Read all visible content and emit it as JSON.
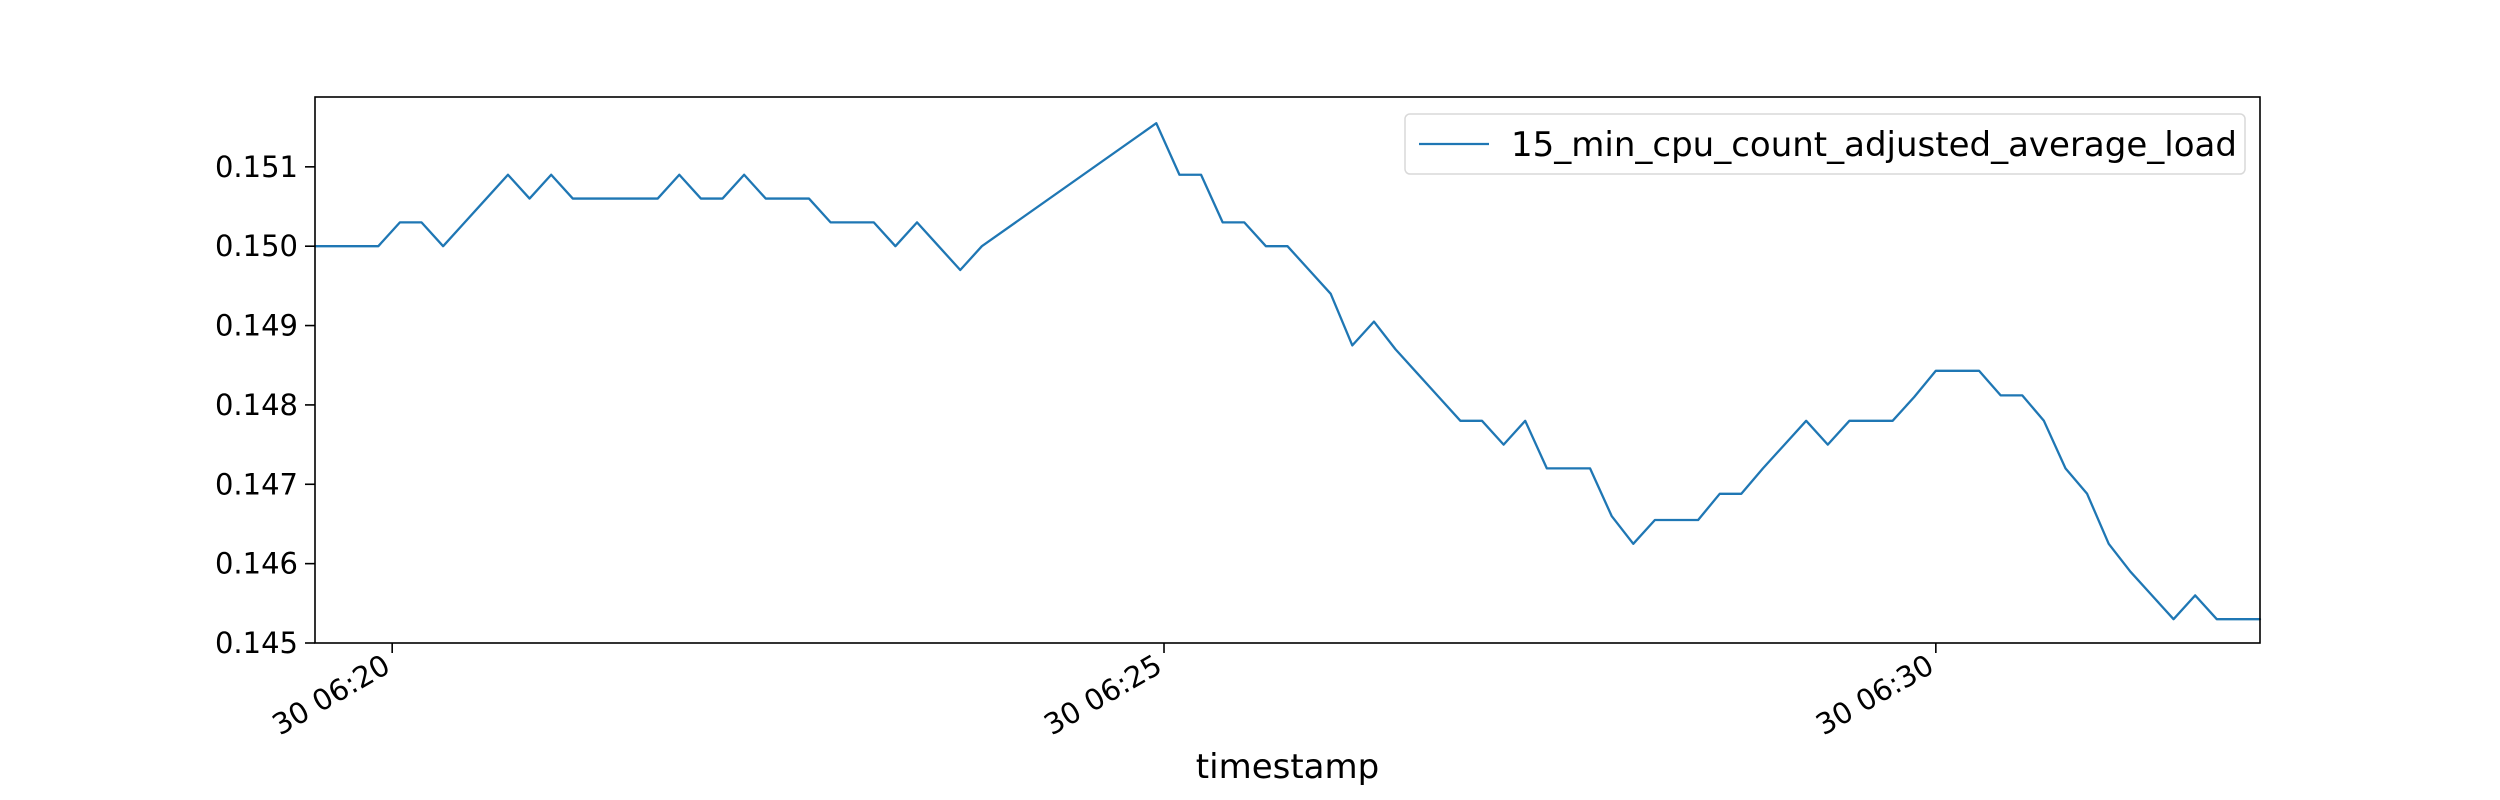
{
  "chart_data": {
    "type": "line",
    "title": "",
    "xlabel": "timestamp",
    "ylabel": "",
    "x_tick_labels": [
      "30 06:20",
      "30 06:25",
      "30 06:30"
    ],
    "y_tick_labels": [
      "0.145",
      "0.146",
      "0.147",
      "0.148",
      "0.149",
      "0.150",
      "0.151"
    ],
    "x_tick_minutes": [
      20,
      25,
      30
    ],
    "y_ticks": [
      0.145,
      0.146,
      0.147,
      0.148,
      0.149,
      0.15,
      0.151
    ],
    "xlim_minutes": [
      19.5,
      32.1
    ],
    "ylim": [
      0.145,
      0.15188
    ],
    "grid": false,
    "legend_position": "top-right",
    "series": [
      {
        "name": "15_min_cpu_count_adjusted_average_load",
        "color": "#1f77b4",
        "x_minutes": [
          19.5,
          19.63,
          19.77,
          19.91,
          20.05,
          20.19,
          20.33,
          20.47,
          20.61,
          20.75,
          20.89,
          21.03,
          21.17,
          21.31,
          21.44,
          21.58,
          21.72,
          21.86,
          22,
          22.14,
          22.28,
          22.42,
          22.56,
          22.7,
          22.84,
          22.98,
          23.12,
          23.26,
          23.4,
          23.54,
          23.68,
          23.82,
          24.95,
          25.1,
          25.24,
          25.38,
          25.52,
          25.66,
          25.8,
          25.94,
          26.08,
          26.22,
          26.36,
          26.5,
          26.64,
          26.78,
          26.92,
          27.06,
          27.2,
          27.34,
          27.48,
          27.62,
          27.76,
          27.9,
          28.04,
          28.18,
          28.32,
          28.46,
          28.6,
          28.74,
          28.88,
          29.02,
          29.16,
          29.3,
          29.44,
          29.58,
          29.72,
          29.86,
          30,
          30.14,
          30.28,
          30.42,
          30.56,
          30.7,
          30.84,
          30.98,
          31.12,
          31.26,
          31.4,
          31.54,
          31.68,
          31.82,
          31.96,
          32.1
        ],
        "values": [
          0.15,
          0.15,
          0.15,
          0.15,
          0.1503,
          0.1503,
          0.15,
          0.1503,
          0.1506,
          0.1509,
          0.1506,
          0.1509,
          0.1506,
          0.1506,
          0.1506,
          0.1506,
          0.1506,
          0.1509,
          0.1506,
          0.1506,
          0.1509,
          0.1506,
          0.1506,
          0.1506,
          0.1503,
          0.1503,
          0.1503,
          0.15,
          0.1503,
          0.15,
          0.1497,
          0.15,
          0.15155,
          0.1509,
          0.1509,
          0.1503,
          0.1503,
          0.15,
          0.15,
          0.1497,
          0.1494,
          0.14875,
          0.14905,
          0.1487,
          0.1484,
          0.1481,
          0.1478,
          0.1478,
          0.1475,
          0.1478,
          0.1472,
          0.1472,
          0.1472,
          0.1466,
          0.14625,
          0.14655,
          0.14655,
          0.14655,
          0.14688,
          0.14688,
          0.1472,
          0.1475,
          0.1478,
          0.1475,
          0.1478,
          0.1478,
          0.1478,
          0.1481,
          0.14843,
          0.14843,
          0.14843,
          0.14812,
          0.14812,
          0.1478,
          0.1472,
          0.14688,
          0.14625,
          0.1459,
          0.1456,
          0.1453,
          0.1456,
          0.1453,
          0.1453,
          0.1453
        ]
      }
    ]
  }
}
